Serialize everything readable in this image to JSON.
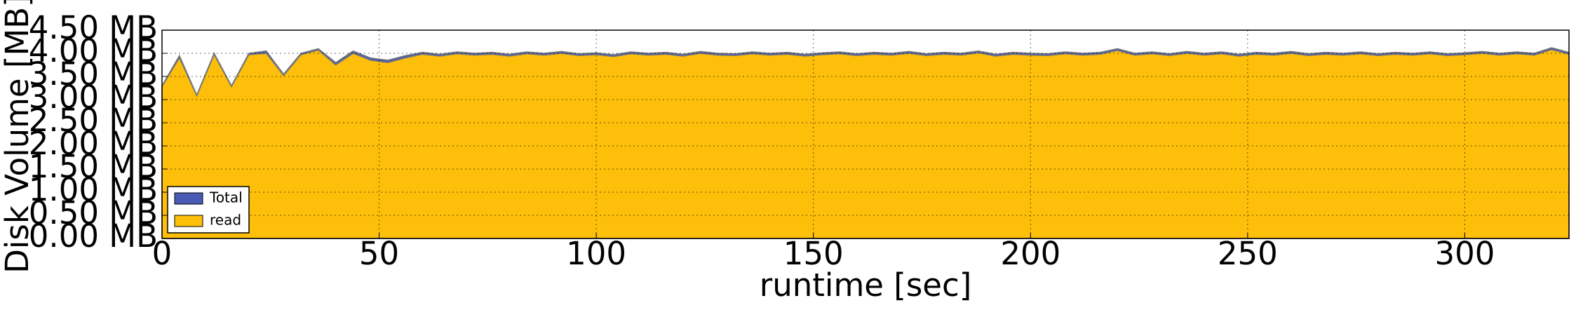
{
  "chart_data": {
    "type": "area",
    "xlabel": "runtime [sec]",
    "ylabel": "Disk Volume [MB]",
    "x": [
      0,
      4,
      8,
      12,
      16,
      20,
      24,
      28,
      32,
      36,
      40,
      44,
      48,
      52,
      56,
      60,
      64,
      68,
      72,
      76,
      80,
      84,
      88,
      92,
      96,
      100,
      104,
      108,
      112,
      116,
      120,
      124,
      128,
      132,
      136,
      140,
      144,
      148,
      152,
      156,
      160,
      164,
      168,
      172,
      176,
      180,
      184,
      188,
      192,
      196,
      200,
      204,
      208,
      212,
      216,
      220,
      224,
      228,
      232,
      236,
      240,
      244,
      248,
      252,
      256,
      260,
      264,
      268,
      272,
      276,
      280,
      284,
      288,
      292,
      296,
      300,
      304,
      308,
      312,
      316,
      320,
      324
    ],
    "series": [
      {
        "name": "Total",
        "color": "#4a5bb5",
        "values": [
          3.3,
          3.95,
          3.1,
          4.0,
          3.3,
          4.0,
          4.05,
          3.55,
          4.0,
          4.1,
          3.8,
          4.05,
          3.9,
          3.85,
          3.95,
          4.02,
          3.98,
          4.03,
          4.0,
          4.02,
          3.98,
          4.03,
          4.0,
          4.04,
          3.99,
          4.01,
          3.97,
          4.03,
          4.0,
          4.02,
          3.98,
          4.04,
          4.0,
          3.99,
          4.03,
          4.0,
          4.02,
          3.98,
          4.01,
          4.03,
          3.99,
          4.02,
          4.0,
          4.04,
          3.99,
          4.02,
          4.0,
          4.05,
          3.98,
          4.02,
          4.0,
          3.99,
          4.03,
          4.0,
          4.02,
          4.1,
          4.0,
          4.03,
          3.99,
          4.04,
          4.0,
          4.03,
          3.98,
          4.02,
          4.0,
          4.04,
          3.99,
          4.02,
          4.0,
          4.03,
          3.99,
          4.02,
          4.0,
          4.03,
          3.99,
          4.01,
          4.04,
          4.0,
          4.03,
          4.0,
          4.12,
          4.02
        ]
      },
      {
        "name": "read",
        "color": "#fdbf0a",
        "values": [
          3.28,
          3.9,
          3.08,
          3.97,
          3.28,
          3.97,
          4.0,
          3.52,
          3.97,
          4.07,
          3.75,
          4.0,
          3.85,
          3.8,
          3.9,
          3.98,
          3.94,
          3.99,
          3.96,
          3.98,
          3.94,
          3.99,
          3.96,
          4.0,
          3.95,
          3.97,
          3.93,
          3.99,
          3.96,
          3.98,
          3.94,
          4.0,
          3.96,
          3.95,
          3.99,
          3.96,
          3.98,
          3.94,
          3.97,
          3.99,
          3.95,
          3.98,
          3.96,
          4.0,
          3.95,
          3.98,
          3.96,
          4.01,
          3.94,
          3.98,
          3.96,
          3.95,
          3.99,
          3.96,
          3.98,
          4.06,
          3.96,
          3.99,
          3.95,
          4.0,
          3.96,
          3.99,
          3.94,
          3.98,
          3.96,
          4.0,
          3.95,
          3.98,
          3.96,
          3.99,
          3.95,
          3.98,
          3.96,
          3.99,
          3.95,
          3.97,
          4.0,
          3.96,
          3.99,
          3.96,
          4.08,
          3.98
        ]
      }
    ],
    "xlim": [
      0,
      324
    ],
    "xticks": [
      0,
      50,
      100,
      150,
      200,
      250,
      300
    ],
    "ylim": [
      0,
      4.5
    ],
    "yticks": [
      {
        "value": 0,
        "label": "0.00 MB"
      },
      {
        "value": 0.5,
        "label": "0.50 MB"
      },
      {
        "value": 1,
        "label": "1.00 MB"
      },
      {
        "value": 1.5,
        "label": "1.50 MB"
      },
      {
        "value": 2,
        "label": "2.00 MB"
      },
      {
        "value": 2.5,
        "label": "2.50 MB"
      },
      {
        "value": 3,
        "label": "3.00 MB"
      },
      {
        "value": 3.5,
        "label": "3.50 MB"
      },
      {
        "value": 4,
        "label": "4.00 MB"
      },
      {
        "value": 4.5,
        "label": "4.50 MB"
      }
    ],
    "grid": true,
    "legend": "lower left"
  }
}
